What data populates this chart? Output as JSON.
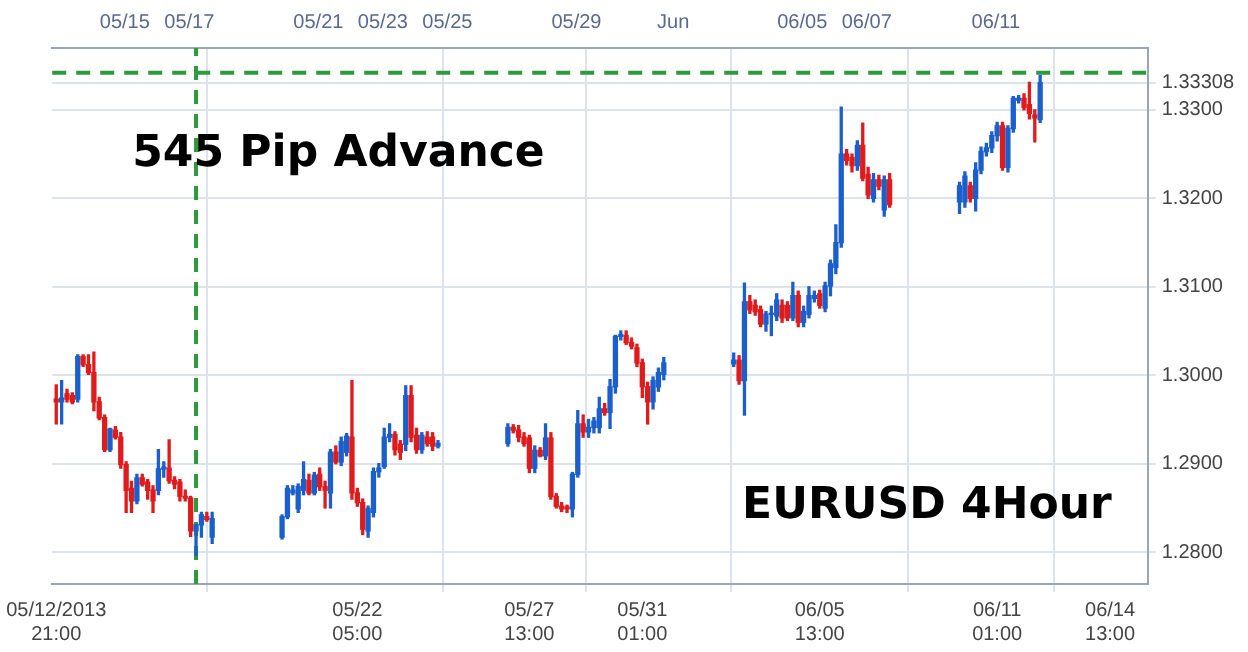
{
  "chart_data": {
    "type": "candlestick",
    "annotations": [
      "545 Pip Advance",
      "EURUSD 4Hour"
    ],
    "x": [
      "2013-05-12T21:00",
      "2013-05-13T01:00",
      "2013-05-13T05:00",
      "2013-05-13T09:00",
      "2013-05-13T13:00",
      "2013-05-13T17:00",
      "2013-05-13T21:00",
      "2013-05-14T01:00",
      "2013-05-14T05:00",
      "2013-05-14T09:00",
      "2013-05-14T13:00",
      "2013-05-14T17:00",
      "2013-05-14T21:00",
      "2013-05-15T01:00",
      "2013-05-15T05:00",
      "2013-05-15T09:00",
      "2013-05-15T13:00",
      "2013-05-15T17:00",
      "2013-05-15T21:00",
      "2013-05-16T01:00",
      "2013-05-16T05:00",
      "2013-05-16T09:00",
      "2013-05-16T13:00",
      "2013-05-16T17:00",
      "2013-05-16T21:00",
      "2013-05-17T01:00",
      "2013-05-17T05:00",
      "2013-05-17T09:00",
      "2013-05-17T13:00",
      "2013-05-17T17:00",
      "2013-05-19T21:00",
      "2013-05-20T01:00",
      "2013-05-20T05:00",
      "2013-05-20T09:00",
      "2013-05-20T13:00",
      "2013-05-20T17:00",
      "2013-05-20T21:00",
      "2013-05-21T01:00",
      "2013-05-21T05:00",
      "2013-05-21T09:00",
      "2013-05-21T13:00",
      "2013-05-21T17:00",
      "2013-05-21T21:00",
      "2013-05-22T01:00",
      "2013-05-22T05:00",
      "2013-05-22T09:00",
      "2013-05-22T13:00",
      "2013-05-22T17:00",
      "2013-05-22T21:00",
      "2013-05-23T01:00",
      "2013-05-23T05:00",
      "2013-05-23T09:00",
      "2013-05-23T13:00",
      "2013-05-23T17:00",
      "2013-05-23T21:00",
      "2013-05-24T01:00",
      "2013-05-24T05:00",
      "2013-05-24T09:00",
      "2013-05-24T13:00",
      "2013-05-24T17:00",
      "2013-05-26T21:00",
      "2013-05-27T01:00",
      "2013-05-27T05:00",
      "2013-05-27T09:00",
      "2013-05-27T13:00",
      "2013-05-27T17:00",
      "2013-05-27T21:00",
      "2013-05-28T01:00",
      "2013-05-28T05:00",
      "2013-05-28T09:00",
      "2013-05-28T13:00",
      "2013-05-28T17:00",
      "2013-05-28T21:00",
      "2013-05-29T01:00",
      "2013-05-29T05:00",
      "2013-05-29T09:00",
      "2013-05-29T13:00",
      "2013-05-29T17:00",
      "2013-05-29T21:00",
      "2013-05-30T01:00",
      "2013-05-30T05:00",
      "2013-05-30T09:00",
      "2013-05-30T13:00",
      "2013-05-30T17:00",
      "2013-05-30T21:00",
      "2013-05-31T01:00",
      "2013-05-31T05:00",
      "2013-05-31T09:00",
      "2013-05-31T13:00",
      "2013-05-31T17:00",
      "2013-06-02T21:00",
      "2013-06-03T01:00",
      "2013-06-03T05:00",
      "2013-06-03T09:00",
      "2013-06-03T13:00",
      "2013-06-03T17:00",
      "2013-06-03T21:00",
      "2013-06-04T01:00",
      "2013-06-04T05:00",
      "2013-06-04T09:00",
      "2013-06-04T13:00",
      "2013-06-04T17:00",
      "2013-06-04T21:00",
      "2013-06-05T01:00",
      "2013-06-05T05:00",
      "2013-06-05T09:00",
      "2013-06-05T13:00",
      "2013-06-05T17:00",
      "2013-06-05T21:00",
      "2013-06-06T01:00",
      "2013-06-06T05:00",
      "2013-06-06T09:00",
      "2013-06-06T13:00",
      "2013-06-06T17:00",
      "2013-06-06T21:00",
      "2013-06-07T01:00",
      "2013-06-07T05:00",
      "2013-06-07T09:00",
      "2013-06-07T13:00",
      "2013-06-07T17:00",
      "2013-06-09T21:00",
      "2013-06-10T01:00",
      "2013-06-10T05:00",
      "2013-06-10T09:00",
      "2013-06-10T13:00",
      "2013-06-10T17:00",
      "2013-06-10T21:00",
      "2013-06-11T01:00",
      "2013-06-11T05:00",
      "2013-06-11T09:00",
      "2013-06-11T13:00",
      "2013-06-11T17:00",
      "2013-06-11T21:00",
      "2013-06-12T01:00",
      "2013-06-12T05:00",
      "2013-06-12T09:00"
    ],
    "ohlc": [
      [
        1.2973,
        1.2989,
        1.2945,
        1.297
      ],
      [
        1.297,
        1.2994,
        1.2945,
        1.2974
      ],
      [
        1.2979,
        1.2984,
        1.297,
        1.2973
      ],
      [
        1.2977,
        1.298,
        1.2968,
        1.297
      ],
      [
        1.2973,
        1.3023,
        1.297,
        1.3021
      ],
      [
        1.3021,
        1.3023,
        1.301,
        1.3012
      ],
      [
        1.3012,
        1.3023,
        1.3001,
        1.3003
      ],
      [
        1.3003,
        1.3026,
        1.296,
        1.297
      ],
      [
        1.297,
        1.2975,
        1.295,
        1.2952
      ],
      [
        1.2952,
        1.2955,
        1.2914,
        1.2916
      ],
      [
        1.2916,
        1.294,
        1.2914,
        1.2939
      ],
      [
        1.2938,
        1.2942,
        1.2928,
        1.293
      ],
      [
        1.293,
        1.2935,
        1.2895,
        1.2899
      ],
      [
        1.2899,
        1.2902,
        1.2845,
        1.287
      ],
      [
        1.2872,
        1.288,
        1.2845,
        1.2858
      ],
      [
        1.2858,
        1.2888,
        1.2855,
        1.2884
      ],
      [
        1.2884,
        1.2888,
        1.2875,
        1.2877
      ],
      [
        1.2879,
        1.2882,
        1.286,
        1.287
      ],
      [
        1.287,
        1.2875,
        1.2845,
        1.2858
      ],
      [
        1.287,
        1.2916,
        1.2865,
        1.2894
      ],
      [
        1.2894,
        1.2902,
        1.2885,
        1.2896
      ],
      [
        1.2895,
        1.2927,
        1.2878,
        1.2881
      ],
      [
        1.2881,
        1.2885,
        1.2872,
        1.2877
      ],
      [
        1.2879,
        1.2882,
        1.2858,
        1.2863
      ],
      [
        1.2863,
        1.287,
        1.2858,
        1.2861
      ],
      [
        1.2861,
        1.2863,
        1.2818,
        1.2824
      ],
      [
        1.2824,
        1.2831,
        1.2796,
        1.2831
      ],
      [
        1.2831,
        1.2845,
        1.2817,
        1.2842
      ],
      [
        1.284,
        1.2845,
        1.2835,
        1.2837
      ],
      [
        1.2817,
        1.2845,
        1.281,
        1.2838
      ],
      [
        1.2817,
        1.2842,
        1.2815,
        1.284
      ],
      [
        1.284,
        1.2875,
        1.2838,
        1.2872
      ],
      [
        1.2867,
        1.2875,
        1.2865,
        1.287
      ],
      [
        1.2849,
        1.2877,
        1.2845,
        1.2874
      ],
      [
        1.287,
        1.2902,
        1.2865,
        1.2882
      ],
      [
        1.2881,
        1.2888,
        1.2865,
        1.2867
      ],
      [
        1.2867,
        1.289,
        1.2865,
        1.2887
      ],
      [
        1.2888,
        1.2895,
        1.287,
        1.2874
      ],
      [
        1.2874,
        1.288,
        1.285,
        1.287
      ],
      [
        1.2867,
        1.2916,
        1.285,
        1.2913
      ],
      [
        1.2913,
        1.292,
        1.29,
        1.2902
      ],
      [
        1.2902,
        1.293,
        1.2898,
        1.2925
      ],
      [
        1.2913,
        1.2934,
        1.2909,
        1.2931
      ],
      [
        1.293,
        1.2994,
        1.286,
        1.2867
      ],
      [
        1.2867,
        1.2872,
        1.2852,
        1.2856
      ],
      [
        1.2856,
        1.286,
        1.282,
        1.2826
      ],
      [
        1.2824,
        1.2852,
        1.2817,
        1.2849
      ],
      [
        1.2845,
        1.2895,
        1.284,
        1.2891
      ],
      [
        1.2891,
        1.29,
        1.2885,
        1.2895
      ],
      [
        1.2897,
        1.294,
        1.2895,
        1.293
      ],
      [
        1.293,
        1.2945,
        1.2925,
        1.2933
      ],
      [
        1.2933,
        1.2936,
        1.291,
        1.2916
      ],
      [
        1.2922,
        1.2926,
        1.2905,
        1.2913
      ],
      [
        1.2922,
        1.2988,
        1.2915,
        1.2977
      ],
      [
        1.2977,
        1.2988,
        1.2925,
        1.293
      ],
      [
        1.2932,
        1.294,
        1.2912,
        1.2916
      ],
      [
        1.2916,
        1.2935,
        1.2912,
        1.2932
      ],
      [
        1.293,
        1.2936,
        1.292,
        1.2923
      ],
      [
        1.293,
        1.2935,
        1.2915,
        1.292
      ],
      [
        1.292,
        1.2926,
        1.2918,
        1.2923
      ],
      [
        1.2923,
        1.2945,
        1.292,
        1.2941
      ],
      [
        1.2941,
        1.2944,
        1.2935,
        1.2938
      ],
      [
        1.2938,
        1.2943,
        1.2925,
        1.293
      ],
      [
        1.293,
        1.2935,
        1.292,
        1.2923
      ],
      [
        1.2929,
        1.2932,
        1.289,
        1.2895
      ],
      [
        1.2895,
        1.292,
        1.289,
        1.2915
      ],
      [
        1.2915,
        1.2918,
        1.2908,
        1.2909
      ],
      [
        1.2909,
        1.2945,
        1.2905,
        1.2929
      ],
      [
        1.2929,
        1.2935,
        1.286,
        1.2863
      ],
      [
        1.2863,
        1.2866,
        1.285,
        1.2852
      ],
      [
        1.2852,
        1.2856,
        1.2846,
        1.2849
      ],
      [
        1.2851,
        1.2853,
        1.2845,
        1.2849
      ],
      [
        1.2849,
        1.289,
        1.284,
        1.2888
      ],
      [
        1.2888,
        1.296,
        1.2885,
        1.2945
      ],
      [
        1.2945,
        1.2955,
        1.293,
        1.2936
      ],
      [
        1.2936,
        1.295,
        1.293,
        1.2941
      ],
      [
        1.2941,
        1.2952,
        1.2935,
        1.2948
      ],
      [
        1.2941,
        1.2975,
        1.2935,
        1.2962
      ],
      [
        1.2962,
        1.2968,
        1.2955,
        1.2958
      ],
      [
        1.2958,
        1.2995,
        1.294,
        1.2987
      ],
      [
        1.2987,
        1.3045,
        1.298,
        1.3044
      ],
      [
        1.3044,
        1.305,
        1.304,
        1.3046
      ],
      [
        1.3045,
        1.305,
        1.3035,
        1.3037
      ],
      [
        1.3037,
        1.3042,
        1.303,
        1.3033
      ],
      [
        1.3031,
        1.3035,
        1.301,
        1.3014
      ],
      [
        1.3014,
        1.3018,
        1.2975,
        1.2987
      ],
      [
        1.2987,
        1.2992,
        1.2945,
        1.297
      ],
      [
        1.297,
        1.2998,
        1.2962,
        1.2994
      ],
      [
        1.2987,
        1.3008,
        1.2982,
        1.3003
      ],
      [
        1.3001,
        1.302,
        1.2995,
        1.3014
      ],
      [
        1.3013,
        1.3025,
        1.301,
        1.3017
      ],
      [
        1.3017,
        1.3022,
        1.299,
        1.2994
      ],
      [
        1.2994,
        1.3104,
        1.2955,
        1.3083
      ],
      [
        1.3083,
        1.309,
        1.307,
        1.3074
      ],
      [
        1.3079,
        1.3085,
        1.3068,
        1.3072
      ],
      [
        1.3074,
        1.3078,
        1.3055,
        1.3058
      ],
      [
        1.3058,
        1.3072,
        1.305,
        1.3069
      ],
      [
        1.3069,
        1.3078,
        1.3045,
        1.307
      ],
      [
        1.3067,
        1.3092,
        1.3062,
        1.3085
      ],
      [
        1.3079,
        1.3085,
        1.306,
        1.3065
      ],
      [
        1.3079,
        1.3083,
        1.3062,
        1.3065
      ],
      [
        1.3065,
        1.3105,
        1.3062,
        1.309
      ],
      [
        1.309,
        1.3095,
        1.3055,
        1.306
      ],
      [
        1.306,
        1.3078,
        1.3055,
        1.3072
      ],
      [
        1.3069,
        1.31,
        1.3065,
        1.309
      ],
      [
        1.3087,
        1.3095,
        1.3083,
        1.309
      ],
      [
        1.3092,
        1.3096,
        1.3076,
        1.3079
      ],
      [
        1.3076,
        1.3105,
        1.3072,
        1.3101
      ],
      [
        1.3101,
        1.313,
        1.309,
        1.3126
      ],
      [
        1.3122,
        1.317,
        1.3115,
        1.315
      ],
      [
        1.315,
        1.3303,
        1.3145,
        1.325
      ],
      [
        1.325,
        1.3255,
        1.3238,
        1.3243
      ],
      [
        1.3246,
        1.325,
        1.323,
        1.3237
      ],
      [
        1.3237,
        1.3265,
        1.3232,
        1.326
      ],
      [
        1.326,
        1.3285,
        1.322,
        1.3223
      ],
      [
        1.3227,
        1.3235,
        1.32,
        1.3204
      ],
      [
        1.32,
        1.3228,
        1.3196,
        1.3221
      ],
      [
        1.3221,
        1.3226,
        1.321,
        1.3214
      ],
      [
        1.3187,
        1.3225,
        1.318,
        1.3221
      ],
      [
        1.3221,
        1.3228,
        1.319,
        1.3193
      ],
      [
        1.3196,
        1.3218,
        1.3183,
        1.3214
      ],
      [
        1.3196,
        1.323,
        1.319,
        1.3225
      ],
      [
        1.3214,
        1.3218,
        1.3196,
        1.32
      ],
      [
        1.32,
        1.324,
        1.3186,
        1.3232
      ],
      [
        1.3232,
        1.3258,
        1.3228,
        1.3253
      ],
      [
        1.3253,
        1.3262,
        1.3248,
        1.3257
      ],
      [
        1.3257,
        1.3275,
        1.3252,
        1.3271
      ],
      [
        1.3271,
        1.3286,
        1.3265,
        1.3282
      ],
      [
        1.3282,
        1.3286,
        1.3232,
        1.3235
      ],
      [
        1.3235,
        1.3282,
        1.323,
        1.3279
      ],
      [
        1.3279,
        1.3315,
        1.3275,
        1.3313
      ],
      [
        1.3311,
        1.3316,
        1.3308,
        1.3313
      ],
      [
        1.3313,
        1.3318,
        1.33,
        1.3303
      ],
      [
        1.3306,
        1.3331,
        1.329,
        1.3296
      ],
      [
        1.3294,
        1.33,
        1.3264,
        1.3291
      ],
      [
        1.3289,
        1.3339,
        1.3286,
        1.33308
      ]
    ],
    "xlim": [
      "2013-05-12T18:00",
      "2013-06-15T17:00"
    ],
    "xticks": [
      {
        "value": "2013-05-12T21:00",
        "label": "05/12/2013 21:00"
      },
      {
        "value": "2013-05-22T05:00",
        "label": "05/22 05:00"
      },
      {
        "value": "2013-05-27T13:00",
        "label": "05/27 13:00"
      },
      {
        "value": "2013-05-31T01:00",
        "label": "05/31 01:00"
      },
      {
        "value": "2013-06-05T13:00",
        "label": "06/05 13:00"
      },
      {
        "value": "2013-06-11T01:00",
        "label": "06/11 01:00"
      },
      {
        "value": "2013-06-14T13:00",
        "label": "06/14 13:00"
      }
    ],
    "x2lim": [
      "2013-05-12T18:00",
      "2013-06-15T17:00"
    ],
    "x2ticks": [
      {
        "value": "2013-05-15",
        "label": "05/15"
      },
      {
        "value": "2013-05-17",
        "label": "05/17"
      },
      {
        "value": "2013-05-21",
        "label": "05/21"
      },
      {
        "value": "2013-05-23",
        "label": "05/23"
      },
      {
        "value": "2013-05-25",
        "label": "05/25"
      },
      {
        "value": "2013-05-29",
        "label": "05/29"
      },
      {
        "value": "2013-06-01",
        "label": "Jun"
      },
      {
        "value": "2013-06-05",
        "label": "06/05"
      },
      {
        "value": "2013-06-07",
        "label": "06/07"
      },
      {
        "value": "2013-06-11",
        "label": "06/11"
      }
    ],
    "ylim": [
      1.2764,
      1.337
    ],
    "yticks": [
      {
        "value": 1.28,
        "label": "1.2800"
      },
      {
        "value": 1.29,
        "label": "1.2900"
      },
      {
        "value": 1.3,
        "label": "1.3000"
      },
      {
        "value": 1.31,
        "label": "1.3100"
      },
      {
        "value": 1.32,
        "label": "1.3200"
      },
      {
        "value": 1.33,
        "label": "1.3300"
      },
      {
        "value": 1.33308,
        "label": "1.33308"
      }
    ],
    "ref_lines": [
      {
        "axis": "x",
        "value": "2013-05-17T05:00",
        "color": "#2e9a3e",
        "line_style": "dashed"
      },
      {
        "axis": "y",
        "value": 1.3342,
        "color": "#2e9a3e",
        "line_style": "dashed"
      }
    ],
    "grid": true
  }
}
